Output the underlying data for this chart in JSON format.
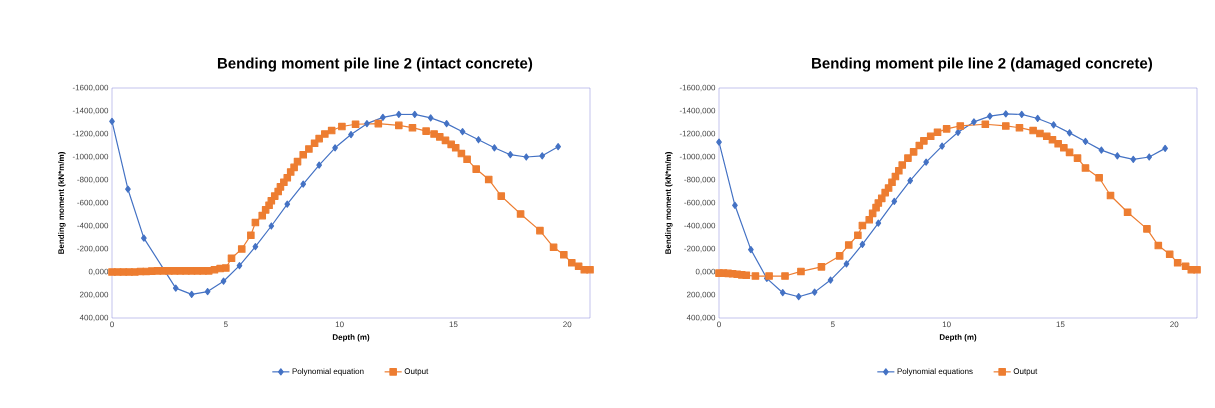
{
  "chart_data": [
    {
      "type": "line",
      "title": "Bending moment pile line 2 (intact concrete)",
      "xlabel": "Depth (m)",
      "ylabel": "Bending moment (kN*m/m)",
      "xlim": [
        0,
        21
      ],
      "xticks": [
        0,
        5,
        10,
        15,
        20
      ],
      "ylim": [
        400,
        -1600
      ],
      "yticks": [
        {
          "value": -1600,
          "label": "-1600,000"
        },
        {
          "value": -1400,
          "label": "-1400,000"
        },
        {
          "value": -1200,
          "label": "-1200,000"
        },
        {
          "value": -1000,
          "label": "-1000,000"
        },
        {
          "value": -800,
          "label": "-800,000"
        },
        {
          "value": -600,
          "label": "-600,000"
        },
        {
          "value": -400,
          "label": "-400,000"
        },
        {
          "value": -200,
          "label": "-200,000"
        },
        {
          "value": 0,
          "label": "0,000"
        },
        {
          "value": 200,
          "label": "200,000"
        },
        {
          "value": 400,
          "label": "400,000"
        }
      ],
      "grid": false,
      "legend": "bottom",
      "line_style": "solid",
      "series": [
        {
          "name": "Polynomial equation",
          "color": "#4472c4",
          "marker": "diamond",
          "x": [
            0,
            0.7,
            1.4,
            2.1,
            2.8,
            3.5,
            4.2,
            4.9,
            5.6,
            6.3,
            7.0,
            7.7,
            8.4,
            9.1,
            9.8,
            10.5,
            11.2,
            11.9,
            12.6,
            13.3,
            14.0,
            14.7,
            15.4,
            16.1,
            16.8,
            17.5,
            18.2,
            18.9,
            19.6
          ],
          "values": [
            -1310,
            -720,
            -295,
            null,
            140,
            195,
            170,
            80,
            -55,
            -220,
            -400,
            -590,
            -765,
            -930,
            -1080,
            -1195,
            -1290,
            -1345,
            -1370,
            -1370,
            -1340,
            -1290,
            -1220,
            -1150,
            -1080,
            -1020,
            -1000,
            -1010,
            -1090
          ]
        },
        {
          "name": "Output",
          "color": "#ed7d31",
          "marker": "square",
          "x": [
            0,
            0.25,
            0.5,
            0.75,
            1.0,
            1.25,
            1.5,
            1.75,
            2.0,
            2.25,
            2.5,
            2.75,
            3.0,
            3.25,
            3.5,
            3.75,
            4.0,
            4.25,
            4.5,
            4.75,
            5.0,
            5.25,
            5.7,
            6.1,
            6.3,
            6.6,
            6.75,
            6.9,
            7.0,
            7.15,
            7.3,
            7.4,
            7.55,
            7.7,
            7.85,
            8.0,
            8.15,
            8.4,
            8.65,
            8.9,
            9.1,
            9.35,
            9.65,
            10.1,
            10.7,
            11.7,
            12.6,
            13.2,
            13.8,
            14.15,
            14.4,
            14.65,
            14.9,
            15.1,
            15.35,
            15.6,
            16.0,
            16.55,
            17.1,
            17.95,
            18.8,
            19.4,
            19.85,
            20.2,
            20.5,
            20.75,
            21.0
          ],
          "values": [
            0,
            0,
            0,
            0,
            0,
            -5,
            -5,
            -8,
            -10,
            -10,
            -10,
            -10,
            -10,
            -10,
            -10,
            -10,
            -10,
            -10,
            -20,
            -30,
            -35,
            -120,
            -200,
            -320,
            -430,
            -490,
            -540,
            -580,
            -620,
            -660,
            -700,
            -740,
            -780,
            -820,
            -870,
            -910,
            -960,
            -1020,
            -1070,
            -1120,
            -1160,
            -1200,
            -1230,
            -1265,
            -1285,
            -1290,
            -1275,
            -1255,
            -1225,
            -1200,
            -1175,
            -1145,
            -1110,
            -1080,
            -1030,
            -980,
            -895,
            -805,
            -660,
            -505,
            -360,
            -215,
            -150,
            -80,
            -50,
            -20,
            -20
          ]
        }
      ]
    },
    {
      "type": "line",
      "title": "Bending moment pile line 2 (damaged concrete)",
      "xlabel": "Depth (m)",
      "ylabel": "Bending moment (kN*m/m)",
      "xlim": [
        0,
        21
      ],
      "xticks": [
        0,
        5,
        10,
        15,
        20
      ],
      "ylim": [
        400,
        -1600
      ],
      "yticks": [
        {
          "value": -1600,
          "label": "-1600,000"
        },
        {
          "value": -1400,
          "label": "-1400,000"
        },
        {
          "value": -1200,
          "label": "-1200,000"
        },
        {
          "value": -1000,
          "label": "-1000,000"
        },
        {
          "value": -800,
          "label": "-800,000"
        },
        {
          "value": -600,
          "label": "-600,000"
        },
        {
          "value": -400,
          "label": "-400,000"
        },
        {
          "value": -200,
          "label": "-200,000"
        },
        {
          "value": 0,
          "label": "0,000"
        },
        {
          "value": 200,
          "label": "200,000"
        },
        {
          "value": 400,
          "label": "400,000"
        }
      ],
      "grid": false,
      "legend": "bottom",
      "line_style": "solid",
      "series": [
        {
          "name": "Polynomial equations",
          "color": "#4472c4",
          "marker": "diamond",
          "x": [
            0,
            0.7,
            1.4,
            2.1,
            2.8,
            3.5,
            4.2,
            4.9,
            5.6,
            6.3,
            7.0,
            7.7,
            8.4,
            9.1,
            9.8,
            10.5,
            11.2,
            11.9,
            12.6,
            13.3,
            14.0,
            14.7,
            15.4,
            16.1,
            16.8,
            17.5,
            18.2,
            18.9,
            19.6
          ],
          "values": [
            -1130,
            -580,
            -195,
            55,
            180,
            215,
            175,
            70,
            -70,
            -240,
            -425,
            -615,
            -795,
            -955,
            -1095,
            -1215,
            -1305,
            -1355,
            -1375,
            -1370,
            -1335,
            -1280,
            -1210,
            -1135,
            -1060,
            -1010,
            -980,
            -1000,
            -1075
          ]
        },
        {
          "name": "Output",
          "color": "#ed7d31",
          "marker": "square",
          "x": [
            0,
            0.2,
            0.4,
            0.6,
            0.8,
            1.0,
            1.2,
            1.6,
            2.2,
            2.9,
            3.6,
            4.5,
            5.3,
            5.7,
            6.1,
            6.3,
            6.6,
            6.75,
            6.9,
            7.0,
            7.15,
            7.3,
            7.45,
            7.6,
            7.75,
            7.9,
            8.05,
            8.3,
            8.55,
            8.8,
            9.0,
            9.3,
            9.6,
            10.0,
            10.6,
            11.7,
            12.6,
            13.2,
            13.8,
            14.1,
            14.4,
            14.65,
            14.9,
            15.15,
            15.4,
            15.75,
            16.1,
            16.7,
            17.2,
            17.95,
            18.8,
            19.3,
            19.8,
            20.15,
            20.5,
            20.75,
            21.0
          ],
          "values": [
            10,
            10,
            12,
            15,
            20,
            25,
            28,
            35,
            35,
            35,
            -5,
            -45,
            -140,
            -235,
            -320,
            -405,
            -455,
            -510,
            -560,
            -600,
            -640,
            -690,
            -730,
            -780,
            -830,
            -880,
            -930,
            -990,
            -1045,
            -1100,
            -1140,
            -1180,
            -1215,
            -1245,
            -1270,
            -1285,
            -1270,
            -1255,
            -1230,
            -1205,
            -1180,
            -1150,
            -1115,
            -1080,
            -1040,
            -990,
            -905,
            -820,
            -665,
            -520,
            -375,
            -230,
            -155,
            -80,
            -50,
            -20,
            -20
          ]
        }
      ]
    }
  ]
}
